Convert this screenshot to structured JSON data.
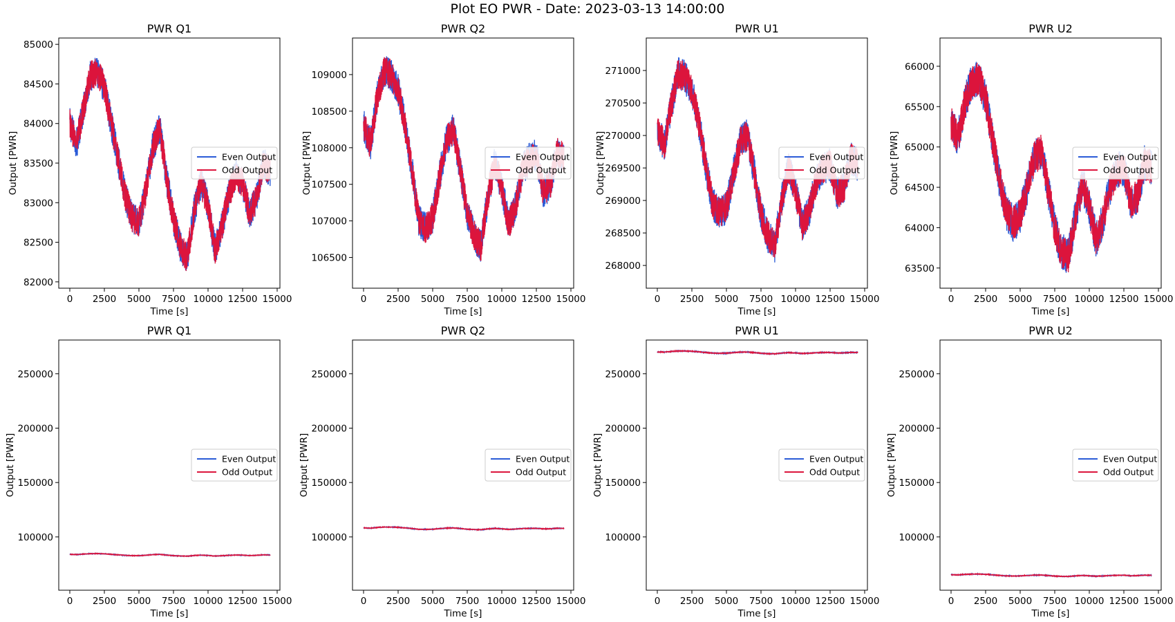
{
  "figure": {
    "suptitle": "Plot EO PWR - Date: 2023-03-13 14:00:00",
    "legend_labels": [
      "Even Output",
      "Odd Output"
    ]
  },
  "colors": {
    "even": "#2a5bd7",
    "odd": "#dc143c"
  },
  "chart_data": [
    {
      "type": "line",
      "title": "PWR Q1",
      "xlabel": "Time [s]",
      "ylabel": "Output [PWR]",
      "xlim": [
        -800,
        15200
      ],
      "ylim": [
        81920,
        85080
      ],
      "xticks": [
        0,
        2500,
        5000,
        7500,
        10000,
        12500,
        15000
      ],
      "yticks": [
        82000,
        82500,
        83000,
        83500,
        84000,
        84500,
        85000
      ],
      "grid": false,
      "legend": "center-right",
      "noise": 380,
      "x": [
        0,
        500,
        1000,
        1500,
        2000,
        2500,
        3000,
        3500,
        4000,
        4500,
        5000,
        5500,
        6000,
        6500,
        7000,
        7500,
        8000,
        8500,
        9000,
        9500,
        10000,
        10500,
        11000,
        11500,
        12000,
        12500,
        13000,
        13500,
        14000,
        14500
      ],
      "series": [
        {
          "name": "Even Output",
          "values": [
            84000,
            83750,
            84200,
            84600,
            84650,
            84450,
            84000,
            83550,
            83100,
            82800,
            82750,
            83150,
            83700,
            83950,
            83300,
            82800,
            82450,
            82300,
            82900,
            83250,
            82950,
            82400,
            82700,
            83100,
            83350,
            83250,
            82850,
            83050,
            83500,
            83400
          ]
        },
        {
          "name": "Odd Output",
          "values": [
            84000,
            83750,
            84200,
            84600,
            84650,
            84450,
            84000,
            83550,
            83100,
            82800,
            82750,
            83150,
            83700,
            83950,
            83300,
            82800,
            82450,
            82300,
            82900,
            83250,
            82950,
            82400,
            82700,
            83100,
            83350,
            83250,
            82850,
            83050,
            83500,
            83400
          ]
        }
      ]
    },
    {
      "type": "line",
      "title": "PWR Q2",
      "xlabel": "Time [s]",
      "ylabel": "Output [PWR]",
      "xlim": [
        -800,
        15200
      ],
      "ylim": [
        106080,
        109500
      ],
      "xticks": [
        0,
        2500,
        5000,
        7500,
        10000,
        12500,
        15000
      ],
      "yticks": [
        106500,
        107000,
        107500,
        108000,
        108500,
        109000
      ],
      "grid": false,
      "legend": "center-right",
      "noise": 420,
      "x": [
        0,
        500,
        1000,
        1500,
        2000,
        2500,
        3000,
        3500,
        4000,
        4500,
        5000,
        5500,
        6000,
        6500,
        7000,
        7500,
        8000,
        8500,
        9000,
        9500,
        10000,
        10500,
        11000,
        11500,
        12000,
        12500,
        13000,
        13500,
        14000,
        14500
      ],
      "series": [
        {
          "name": "Even Output",
          "values": [
            108300,
            108050,
            108700,
            109050,
            109000,
            108800,
            108300,
            107700,
            107000,
            106900,
            107050,
            107600,
            108100,
            108250,
            107700,
            107100,
            106800,
            106650,
            107350,
            107800,
            107450,
            106950,
            107200,
            107700,
            107850,
            107900,
            107400,
            107500,
            107950,
            107850
          ]
        },
        {
          "name": "Odd Output",
          "values": [
            108300,
            108050,
            108700,
            109050,
            109000,
            108800,
            108300,
            107700,
            107000,
            106900,
            107050,
            107600,
            108100,
            108250,
            107700,
            107100,
            106800,
            106650,
            107350,
            107800,
            107450,
            106950,
            107200,
            107700,
            107850,
            107900,
            107400,
            107500,
            107950,
            107850
          ]
        }
      ]
    },
    {
      "type": "line",
      "title": "PWR U1",
      "xlabel": "Time [s]",
      "ylabel": "Output [PWR]",
      "xlim": [
        -800,
        15200
      ],
      "ylim": [
        267650,
        271500
      ],
      "xticks": [
        0,
        2500,
        5000,
        7500,
        10000,
        12500,
        15000
      ],
      "yticks": [
        268000,
        268500,
        269000,
        269500,
        270000,
        270500,
        271000
      ],
      "grid": false,
      "legend": "center-right",
      "noise": 480,
      "x": [
        0,
        500,
        1000,
        1500,
        2000,
        2500,
        3000,
        3500,
        4000,
        4500,
        5000,
        5500,
        6000,
        6500,
        7000,
        7500,
        8000,
        8500,
        9000,
        9500,
        10000,
        10500,
        11000,
        11500,
        12000,
        12500,
        13000,
        13500,
        14000,
        14500
      ],
      "series": [
        {
          "name": "Even Output",
          "values": [
            270100,
            269850,
            270450,
            270950,
            270900,
            270700,
            270200,
            269550,
            268950,
            268800,
            268900,
            269400,
            269900,
            270000,
            269450,
            268800,
            268450,
            268300,
            269000,
            269500,
            269150,
            268600,
            268850,
            269300,
            269500,
            269550,
            269100,
            269200,
            269650,
            269550
          ]
        },
        {
          "name": "Odd Output",
          "values": [
            270100,
            269850,
            270450,
            270950,
            270900,
            270700,
            270200,
            269550,
            268950,
            268800,
            268900,
            269400,
            269900,
            270000,
            269450,
            268800,
            268450,
            268300,
            269000,
            269500,
            269150,
            268600,
            268850,
            269300,
            269500,
            269550,
            269100,
            269200,
            269650,
            269550
          ]
        }
      ]
    },
    {
      "type": "line",
      "title": "PWR U2",
      "xlabel": "Time [s]",
      "ylabel": "Output [PWR]",
      "xlim": [
        -800,
        15200
      ],
      "ylim": [
        63250,
        66350
      ],
      "xticks": [
        0,
        2500,
        5000,
        7500,
        10000,
        12500,
        15000
      ],
      "yticks": [
        63500,
        64000,
        64500,
        65000,
        65500,
        66000
      ],
      "grid": false,
      "legend": "center-right",
      "noise": 430,
      "x": [
        0,
        500,
        1000,
        1500,
        2000,
        2500,
        3000,
        3500,
        4000,
        4500,
        5000,
        5500,
        6000,
        6500,
        7000,
        7500,
        8000,
        8500,
        9000,
        9500,
        10000,
        10500,
        11000,
        11500,
        12000,
        12500,
        13000,
        13500,
        14000,
        14500
      ],
      "series": [
        {
          "name": "Even Output",
          "values": [
            65300,
            65100,
            65550,
            65800,
            65850,
            65600,
            65100,
            64600,
            64200,
            64050,
            64150,
            64500,
            64850,
            64950,
            64500,
            64000,
            63700,
            63650,
            64150,
            64550,
            64250,
            63850,
            64100,
            64500,
            64700,
            64750,
            64300,
            64400,
            64800,
            64750
          ]
        },
        {
          "name": "Odd Output",
          "values": [
            65300,
            65100,
            65550,
            65800,
            65850,
            65600,
            65100,
            64600,
            64200,
            64050,
            64150,
            64500,
            64850,
            64950,
            64500,
            64000,
            63700,
            63650,
            64150,
            64550,
            64250,
            63850,
            64100,
            64500,
            64700,
            64750,
            64300,
            64400,
            64800,
            64750
          ]
        }
      ]
    },
    {
      "type": "line",
      "title": "PWR Q1",
      "xlabel": "Time [s]",
      "ylabel": "Output [PWR]",
      "xlim": [
        -800,
        15200
      ],
      "ylim": [
        51000,
        281000
      ],
      "xticks": [
        0,
        2500,
        5000,
        7500,
        10000,
        12500,
        15000
      ],
      "yticks": [
        100000,
        150000,
        200000,
        250000
      ],
      "grid": false,
      "legend": "center-right",
      "noise": 380,
      "x": [
        0,
        500,
        1000,
        1500,
        2000,
        2500,
        3000,
        3500,
        4000,
        4500,
        5000,
        5500,
        6000,
        6500,
        7000,
        7500,
        8000,
        8500,
        9000,
        9500,
        10000,
        10500,
        11000,
        11500,
        12000,
        12500,
        13000,
        13500,
        14000,
        14500
      ],
      "series": [
        {
          "name": "Even Output",
          "values": [
            84000,
            83750,
            84200,
            84600,
            84650,
            84450,
            84000,
            83550,
            83100,
            82800,
            82750,
            83150,
            83700,
            83950,
            83300,
            82800,
            82450,
            82300,
            82900,
            83250,
            82950,
            82400,
            82700,
            83100,
            83350,
            83250,
            82850,
            83050,
            83500,
            83400
          ]
        },
        {
          "name": "Odd Output",
          "values": [
            84000,
            83750,
            84200,
            84600,
            84650,
            84450,
            84000,
            83550,
            83100,
            82800,
            82750,
            83150,
            83700,
            83950,
            83300,
            82800,
            82450,
            82300,
            82900,
            83250,
            82950,
            82400,
            82700,
            83100,
            83350,
            83250,
            82850,
            83050,
            83500,
            83400
          ]
        }
      ]
    },
    {
      "type": "line",
      "title": "PWR Q2",
      "xlabel": "Time [s]",
      "ylabel": "Output [PWR]",
      "xlim": [
        -800,
        15200
      ],
      "ylim": [
        51000,
        281000
      ],
      "xticks": [
        0,
        2500,
        5000,
        7500,
        10000,
        12500,
        15000
      ],
      "yticks": [
        100000,
        150000,
        200000,
        250000
      ],
      "grid": false,
      "legend": "center-right",
      "noise": 420,
      "x": [
        0,
        500,
        1000,
        1500,
        2000,
        2500,
        3000,
        3500,
        4000,
        4500,
        5000,
        5500,
        6000,
        6500,
        7000,
        7500,
        8000,
        8500,
        9000,
        9500,
        10000,
        10500,
        11000,
        11500,
        12000,
        12500,
        13000,
        13500,
        14000,
        14500
      ],
      "series": [
        {
          "name": "Even Output",
          "values": [
            108300,
            108050,
            108700,
            109050,
            109000,
            108800,
            108300,
            107700,
            107000,
            106900,
            107050,
            107600,
            108100,
            108250,
            107700,
            107100,
            106800,
            106650,
            107350,
            107800,
            107450,
            106950,
            107200,
            107700,
            107850,
            107900,
            107400,
            107500,
            107950,
            107850
          ]
        },
        {
          "name": "Odd Output",
          "values": [
            108300,
            108050,
            108700,
            109050,
            109000,
            108800,
            108300,
            107700,
            107000,
            106900,
            107050,
            107600,
            108100,
            108250,
            107700,
            107100,
            106800,
            106650,
            107350,
            107800,
            107450,
            106950,
            107200,
            107700,
            107850,
            107900,
            107400,
            107500,
            107950,
            107850
          ]
        }
      ]
    },
    {
      "type": "line",
      "title": "PWR U1",
      "xlabel": "Time [s]",
      "ylabel": "Output [PWR]",
      "xlim": [
        -800,
        15200
      ],
      "ylim": [
        51000,
        281000
      ],
      "xticks": [
        0,
        2500,
        5000,
        7500,
        10000,
        12500,
        15000
      ],
      "yticks": [
        100000,
        150000,
        200000,
        250000
      ],
      "grid": false,
      "legend": "center-right",
      "noise": 480,
      "x": [
        0,
        500,
        1000,
        1500,
        2000,
        2500,
        3000,
        3500,
        4000,
        4500,
        5000,
        5500,
        6000,
        6500,
        7000,
        7500,
        8000,
        8500,
        9000,
        9500,
        10000,
        10500,
        11000,
        11500,
        12000,
        12500,
        13000,
        13500,
        14000,
        14500
      ],
      "series": [
        {
          "name": "Even Output",
          "values": [
            270100,
            269850,
            270450,
            270950,
            270900,
            270700,
            270200,
            269550,
            268950,
            268800,
            268900,
            269400,
            269900,
            270000,
            269450,
            268800,
            268450,
            268300,
            269000,
            269500,
            269150,
            268600,
            268850,
            269300,
            269500,
            269550,
            269100,
            269200,
            269650,
            269550
          ]
        },
        {
          "name": "Odd Output",
          "values": [
            270100,
            269850,
            270450,
            270950,
            270900,
            270700,
            270200,
            269550,
            268950,
            268800,
            268900,
            269400,
            269900,
            270000,
            269450,
            268800,
            268450,
            268300,
            269000,
            269500,
            269150,
            268600,
            268850,
            269300,
            269500,
            269550,
            269100,
            269200,
            269650,
            269550
          ]
        }
      ]
    },
    {
      "type": "line",
      "title": "PWR U2",
      "xlabel": "Time [s]",
      "ylabel": "Output [PWR]",
      "xlim": [
        -800,
        15200
      ],
      "ylim": [
        51000,
        281000
      ],
      "xticks": [
        0,
        2500,
        5000,
        7500,
        10000,
        12500,
        15000
      ],
      "yticks": [
        100000,
        150000,
        200000,
        250000
      ],
      "grid": false,
      "legend": "center-right",
      "noise": 430,
      "x": [
        0,
        500,
        1000,
        1500,
        2000,
        2500,
        3000,
        3500,
        4000,
        4500,
        5000,
        5500,
        6000,
        6500,
        7000,
        7500,
        8000,
        8500,
        9000,
        9500,
        10000,
        10500,
        11000,
        11500,
        12000,
        12500,
        13000,
        13500,
        14000,
        14500
      ],
      "series": [
        {
          "name": "Even Output",
          "values": [
            65300,
            65100,
            65550,
            65800,
            65850,
            65600,
            65100,
            64600,
            64200,
            64050,
            64150,
            64500,
            64850,
            64950,
            64500,
            64000,
            63700,
            63650,
            64150,
            64550,
            64250,
            63850,
            64100,
            64500,
            64700,
            64750,
            64300,
            64400,
            64800,
            64750
          ]
        },
        {
          "name": "Odd Output",
          "values": [
            65300,
            65100,
            65550,
            65800,
            65850,
            65600,
            65100,
            64600,
            64200,
            64050,
            64150,
            64500,
            64850,
            64950,
            64500,
            64000,
            63700,
            63650,
            64150,
            64550,
            64250,
            63850,
            64100,
            64500,
            64700,
            64750,
            64300,
            64400,
            64800,
            64750
          ]
        }
      ]
    }
  ]
}
